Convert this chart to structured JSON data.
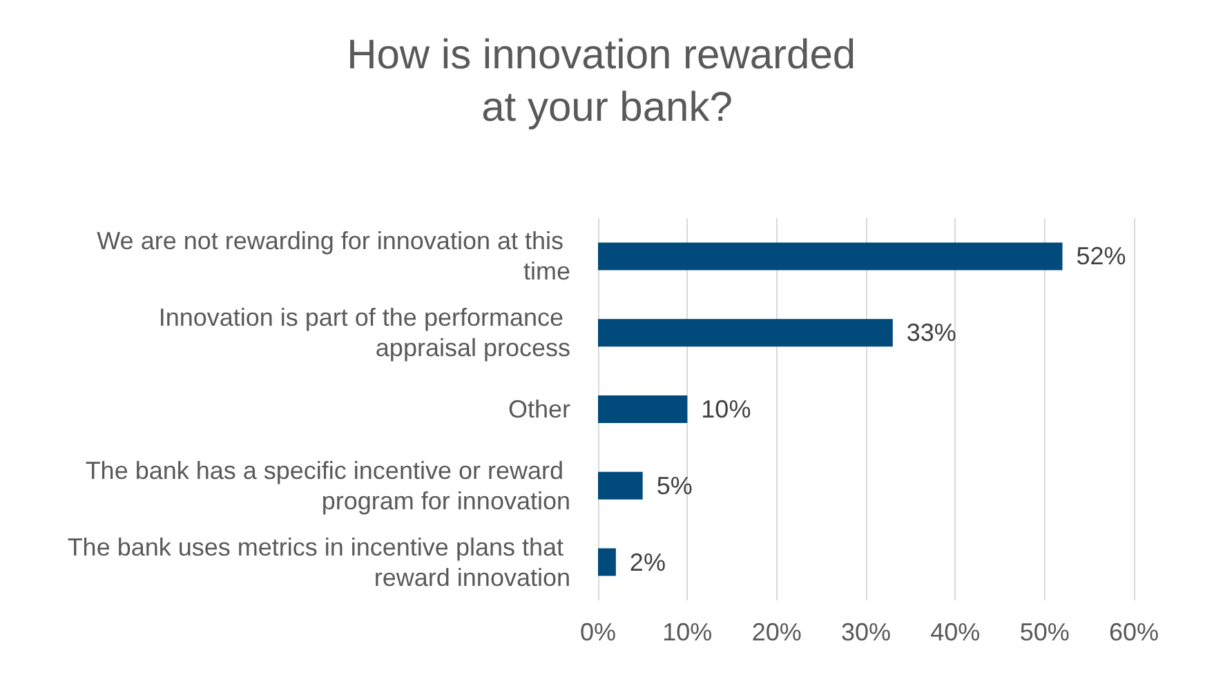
{
  "chart_data": {
    "type": "bar",
    "orientation": "horizontal",
    "title": "How is innovation rewarded at your bank?",
    "categories": [
      "We are not rewarding for innovation at this time",
      "Innovation is part of the performance appraisal process",
      "Other",
      "The bank has a specific incentive or reward program for innovation",
      "The bank uses metrics in incentive plans that reward innovation"
    ],
    "values": [
      52,
      33,
      10,
      5,
      2
    ],
    "value_labels": [
      "52%",
      "33%",
      "10%",
      "5%",
      "2%"
    ],
    "color": "#004b7c",
    "xlim": [
      0,
      60
    ],
    "xticks": [
      {
        "value": 0,
        "label": "0%"
      },
      {
        "value": 10,
        "label": "10%"
      },
      {
        "value": 20,
        "label": "20%"
      },
      {
        "value": 30,
        "label": "30%"
      },
      {
        "value": 40,
        "label": "40%"
      },
      {
        "value": 50,
        "label": "50%"
      },
      {
        "value": 60,
        "label": "60%"
      }
    ],
    "grid": "x"
  }
}
